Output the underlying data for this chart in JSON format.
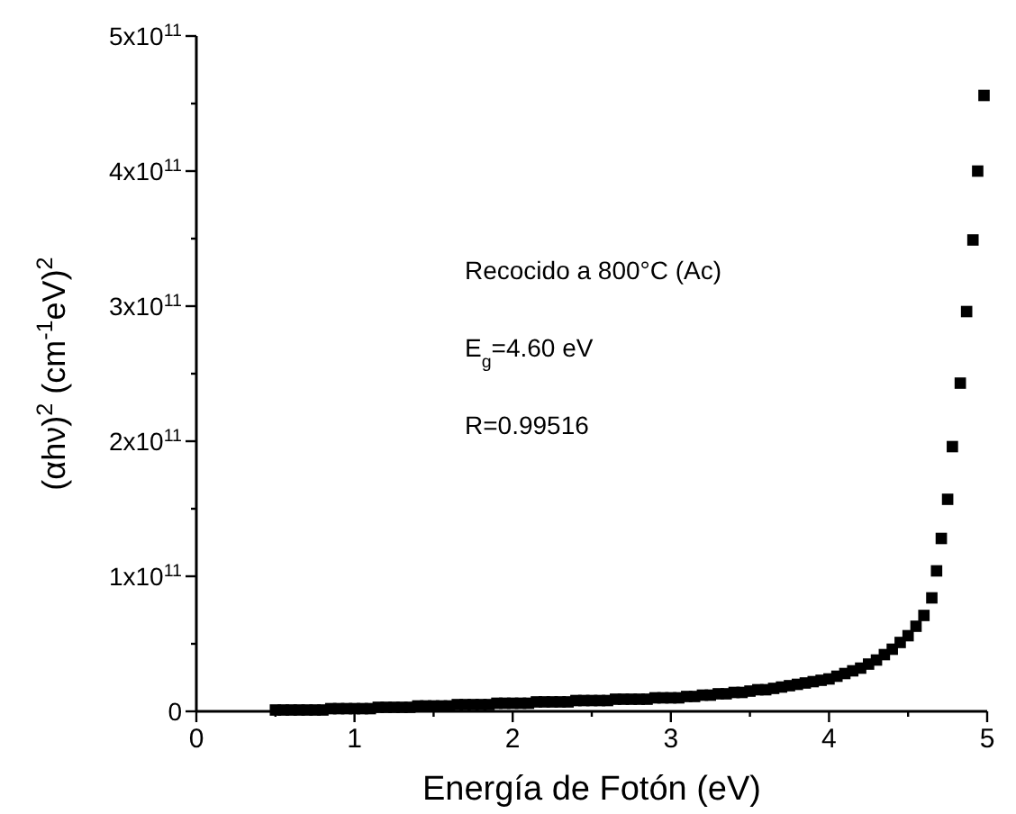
{
  "chart_data": {
    "type": "scatter",
    "xlabel": "Energía de Fotón (eV)",
    "ylabel": "(αhν)$^{2}$ (cm$^{-1}$eV)$^{2}$",
    "annotations": [
      "Recocido a 800°C (Ac)",
      "E$_{g}$=4.60 eV",
      "R=0.99516"
    ],
    "marker": "square",
    "grid": false,
    "xlim": [
      0,
      5
    ],
    "xticks": [
      0,
      {
        "value": 0.5,
        "label": null
      },
      1,
      {
        "value": 1.5,
        "label": null
      },
      2,
      {
        "value": 2.5,
        "label": null
      },
      3,
      {
        "value": 3.5,
        "label": null
      },
      4,
      {
        "value": 4.5,
        "label": null
      },
      5
    ],
    "ylim": [
      0,
      500000000000.0
    ],
    "yticks": [
      0,
      {
        "value": 50000000000.0,
        "label": null
      },
      {
        "value": 100000000000.0,
        "label": "1x10$^{11}$"
      },
      {
        "value": 150000000000.0,
        "label": null
      },
      {
        "value": 200000000000.0,
        "label": "2x10$^{11}$"
      },
      {
        "value": 250000000000.0,
        "label": null
      },
      {
        "value": 300000000000.0,
        "label": "3x10$^{11}$"
      },
      {
        "value": 350000000000.0,
        "label": null
      },
      {
        "value": 400000000000.0,
        "label": "4x10$^{11}$"
      },
      {
        "value": 450000000000.0,
        "label": null
      },
      {
        "value": 500000000000.0,
        "label": "5x10$^{11}$"
      }
    ],
    "series": [
      {
        "color": "#000000",
        "x": [
          0.5,
          0.55,
          0.6,
          0.65,
          0.7,
          0.75,
          0.8,
          0.85,
          0.9,
          0.95,
          1.0,
          1.05,
          1.1,
          1.15,
          1.2,
          1.25,
          1.3,
          1.35,
          1.4,
          1.45,
          1.5,
          1.55,
          1.6,
          1.65,
          1.7,
          1.75,
          1.8,
          1.85,
          1.9,
          1.95,
          2.0,
          2.05,
          2.1,
          2.15,
          2.2,
          2.25,
          2.3,
          2.35,
          2.4,
          2.45,
          2.5,
          2.55,
          2.6,
          2.65,
          2.7,
          2.75,
          2.8,
          2.85,
          2.9,
          2.95,
          3.0,
          3.05,
          3.1,
          3.15,
          3.2,
          3.25,
          3.3,
          3.35,
          3.4,
          3.45,
          3.5,
          3.55,
          3.6,
          3.65,
          3.7,
          3.75,
          3.8,
          3.85,
          3.9,
          3.95,
          4.0,
          4.05,
          4.1,
          4.15,
          4.2,
          4.25,
          4.3,
          4.35,
          4.4,
          4.45,
          4.5,
          4.55,
          4.6,
          4.65,
          4.68,
          4.71,
          4.75,
          4.78,
          4.83,
          4.87,
          4.91,
          4.94,
          4.98
        ],
        "values": [
          1000000000.0,
          1000000000.0,
          1000000000.0,
          1000000000.0,
          1000000000.0,
          1000000000.0,
          1000000000.0,
          2000000000.0,
          2000000000.0,
          2000000000.0,
          2000000000.0,
          2000000000.0,
          2000000000.0,
          3000000000.0,
          3000000000.0,
          3000000000.0,
          3000000000.0,
          3000000000.0,
          4000000000.0,
          4000000000.0,
          4000000000.0,
          4000000000.0,
          4000000000.0,
          5000000000.0,
          5000000000.0,
          5000000000.0,
          5000000000.0,
          5000000000.0,
          6000000000.0,
          6000000000.0,
          6000000000.0,
          6000000000.0,
          6000000000.0,
          7000000000.0,
          7000000000.0,
          7000000000.0,
          7000000000.0,
          7000000000.0,
          8000000000.0,
          8000000000.0,
          8000000000.0,
          8000000000.0,
          8000000000.0,
          9000000000.0,
          9000000000.0,
          9000000000.0,
          9000000000.0,
          9000000000.0,
          10000000000.0,
          10000000000.0,
          10000000000.0,
          10000000000.0,
          11000000000.0,
          11000000000.0,
          12000000000.0,
          12000000000.0,
          13000000000.0,
          13000000000.0,
          14000000000.0,
          14000000000.0,
          15000000000.0,
          16000000000.0,
          16000000000.0,
          17000000000.0,
          18000000000.0,
          19000000000.0,
          20000000000.0,
          21000000000.0,
          22000000000.0,
          23000000000.0,
          24000000000.0,
          26000000000.0,
          28000000000.0,
          30000000000.0,
          32000000000.0,
          35000000000.0,
          38000000000.0,
          42000000000.0,
          46000000000.0,
          51000000000.0,
          56000000000.0,
          63000000000.0,
          71000000000.0,
          84000000000.0,
          104000000000.0,
          128000000000.0,
          157000000000.0,
          196000000000.0,
          243000000000.0,
          296000000000.0,
          349000000000.0,
          400000000000.0,
          456000000000.0
        ]
      }
    ]
  }
}
